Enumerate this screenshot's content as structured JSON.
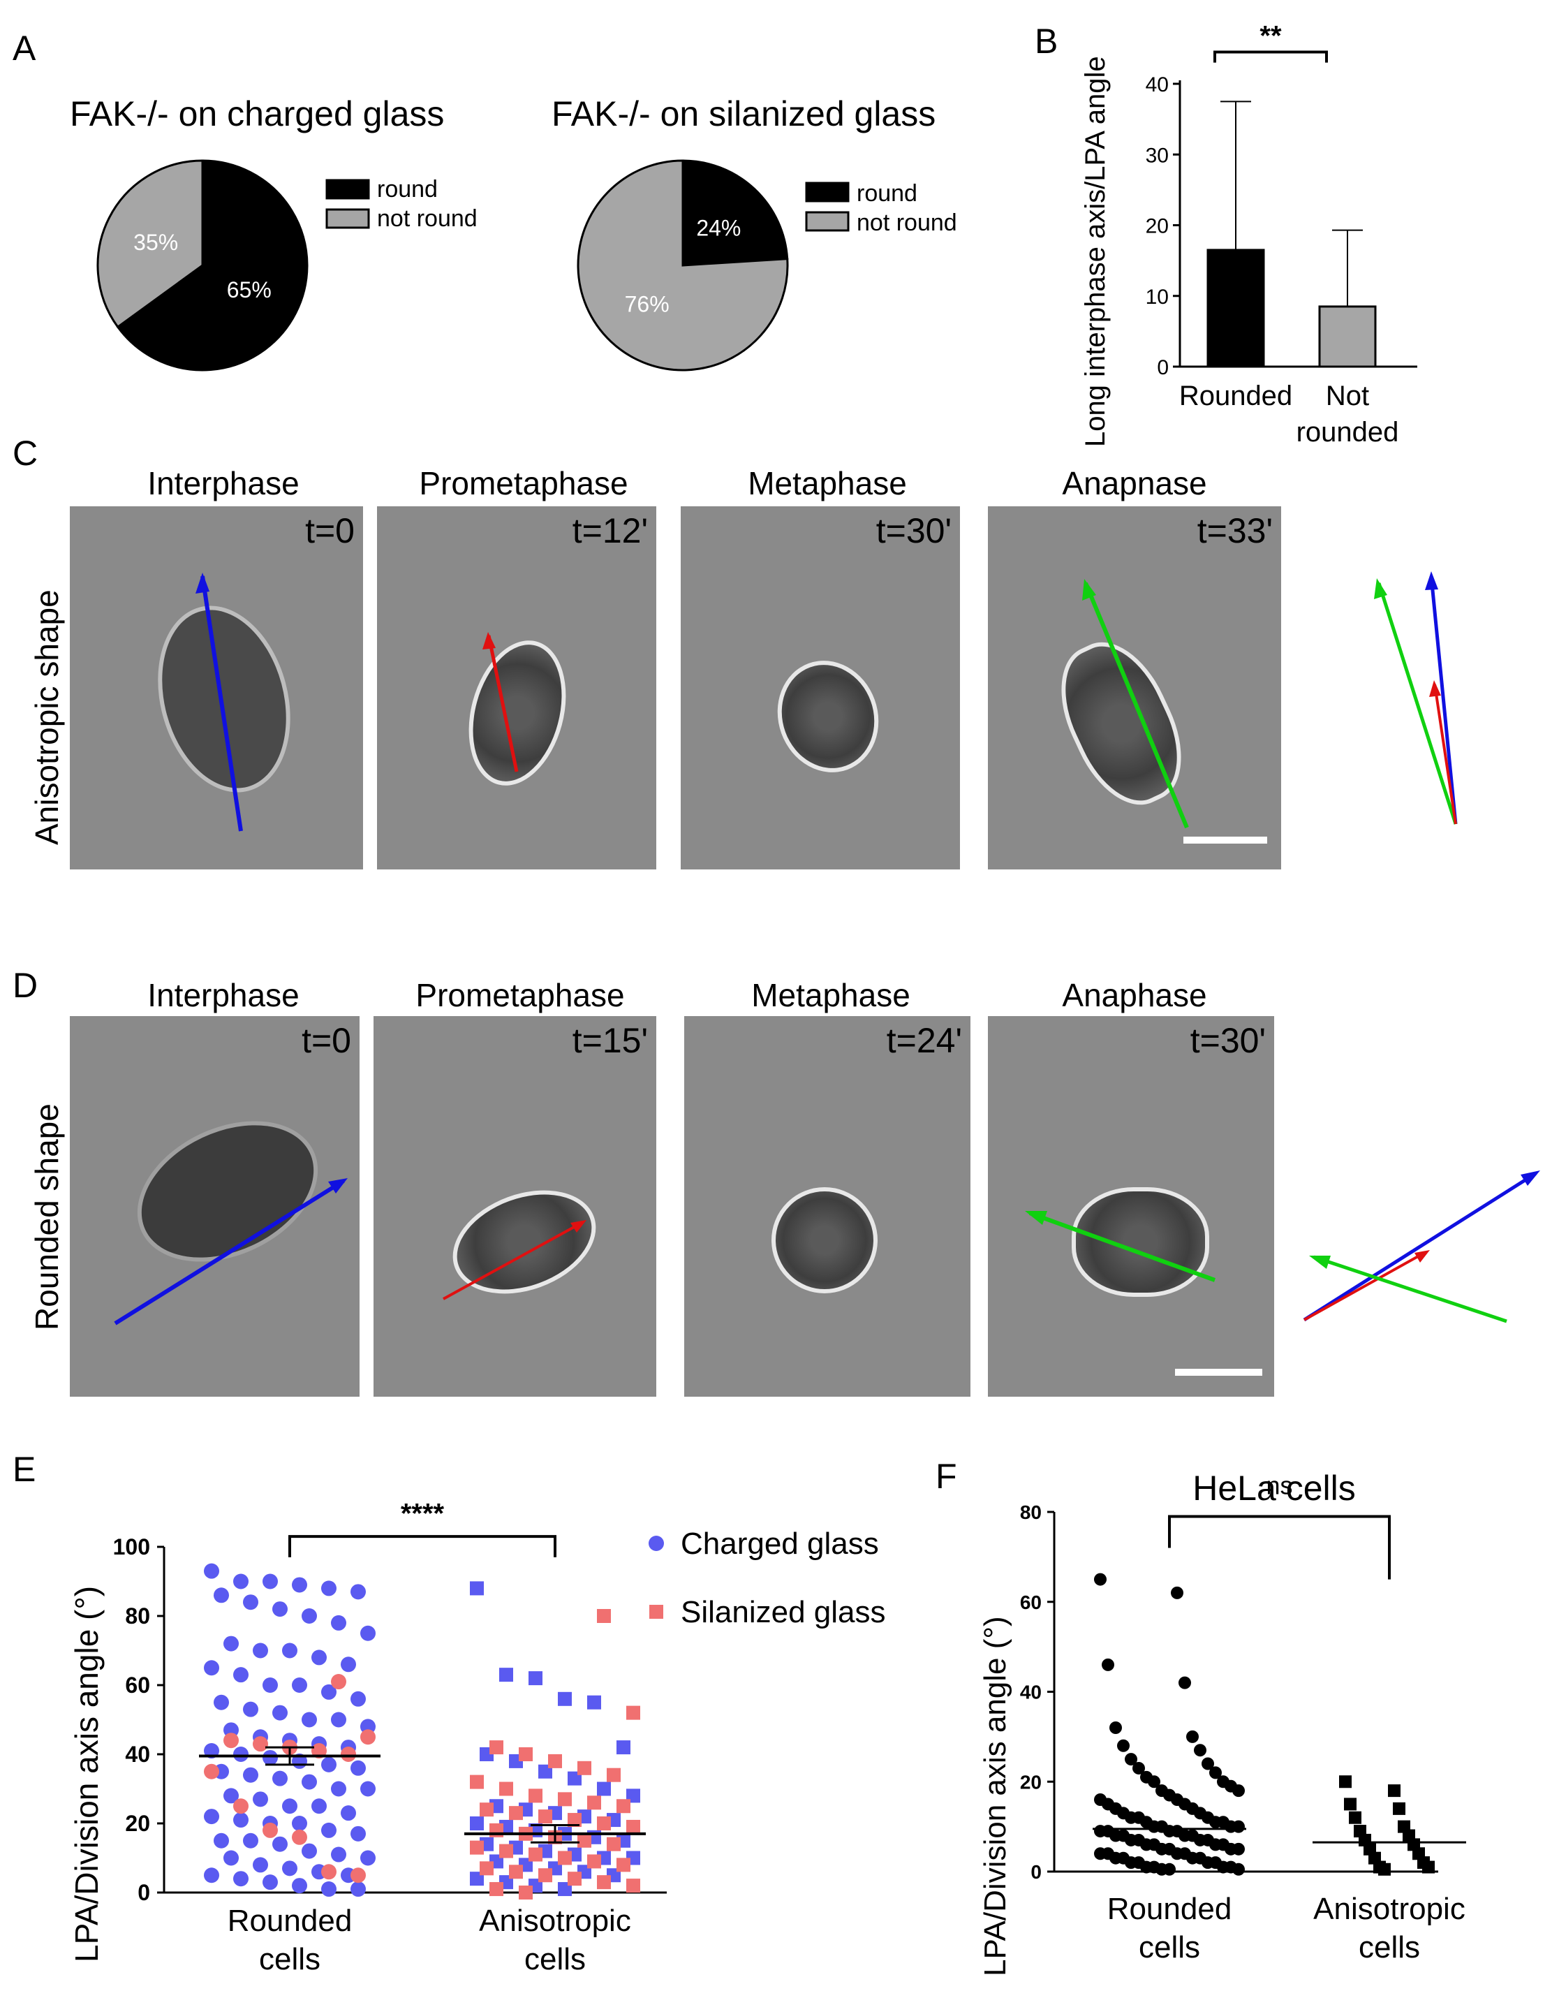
{
  "panels": {
    "A": {
      "label": "A",
      "pie1": {
        "title": "FAK-/- on charged glass",
        "slices": [
          {
            "name": "round",
            "value": 65,
            "label": "65%",
            "color": "#000000"
          },
          {
            "name": "not round",
            "value": 35,
            "label": "35%",
            "color": "#a6a6a6"
          }
        ]
      },
      "pie2": {
        "title": "FAK-/- on silanized glass",
        "slices": [
          {
            "name": "round",
            "value": 24,
            "label": "24%",
            "color": "#000000"
          },
          {
            "name": "not round",
            "value": 76,
            "label": "76%",
            "color": "#a6a6a6"
          }
        ]
      },
      "legend": [
        "round",
        "not round"
      ]
    },
    "B": {
      "label": "B",
      "ylabel": "Long interphase axis/LPA angle",
      "significance": "**",
      "yticks": [
        "0",
        "10",
        "20",
        "30",
        "40"
      ],
      "categories": [
        [
          "Rounded"
        ],
        [
          "Not",
          "rounded"
        ]
      ]
    },
    "C": {
      "label": "C",
      "row_label": "Anisotropic shape",
      "frames": [
        {
          "stage": "Interphase",
          "time": "t=0"
        },
        {
          "stage": "Prometaphase",
          "time": "t=12'"
        },
        {
          "stage": "Metaphase",
          "time": "t=30'"
        },
        {
          "stage": "Anapnase",
          "time": "t=33'"
        }
      ]
    },
    "D": {
      "label": "D",
      "row_label": "Rounded shape",
      "frames": [
        {
          "stage": "Interphase",
          "time": "t=0"
        },
        {
          "stage": "Prometaphase",
          "time": "t=15'"
        },
        {
          "stage": "Metaphase",
          "time": "t=24'"
        },
        {
          "stage": "Anaphase",
          "time": "t=30'"
        }
      ]
    },
    "E": {
      "label": "E",
      "ylabel": "LPA/Division axis angle (°)",
      "significance": "****",
      "yticks": [
        "0",
        "20",
        "40",
        "60",
        "80",
        "100"
      ],
      "categories": [
        [
          "Rounded",
          "cells"
        ],
        [
          "Anisotropic",
          "cells"
        ]
      ],
      "legend": [
        {
          "name": "Charged glass",
          "color": "#5a5af0"
        },
        {
          "name": "Silanized glass",
          "color": "#f07070"
        }
      ]
    },
    "F": {
      "label": "F",
      "title": "HeLa cells",
      "ylabel": "LPA/Division axis angle (°)",
      "significance": "ns",
      "yticks": [
        "0",
        "20",
        "40",
        "60",
        "80"
      ],
      "categories": [
        [
          "Rounded",
          "cells"
        ],
        [
          "Anisotropic",
          "cells"
        ]
      ]
    }
  },
  "chart_data": [
    {
      "type": "pie",
      "title": "FAK-/- on charged glass",
      "categories": [
        "round",
        "not round"
      ],
      "values": [
        65,
        35
      ]
    },
    {
      "type": "pie",
      "title": "FAK-/- on silanized glass",
      "categories": [
        "round",
        "not round"
      ],
      "values": [
        24,
        76
      ]
    },
    {
      "type": "bar",
      "title": "",
      "categories": [
        "Rounded",
        "Not rounded"
      ],
      "values": [
        16.5,
        8.5
      ],
      "error_upper": [
        37.5,
        19.3
      ],
      "xlabel": "",
      "ylabel": "Long interphase axis/LPA angle",
      "ylim": [
        0,
        40
      ],
      "annotations": [
        "**"
      ]
    },
    {
      "type": "scatter",
      "title": "",
      "categories": [
        "Rounded cells",
        "Anisotropic cells"
      ],
      "means": [
        39.5,
        17
      ],
      "ylabel": "LPA/Division axis angle (°)",
      "ylim": [
        0,
        100
      ],
      "annotations": [
        "****"
      ],
      "series": [
        {
          "name": "Charged glass",
          "rounded": [
            93,
            90,
            90,
            89,
            88,
            87,
            86,
            84,
            82,
            80,
            78,
            75,
            72,
            70,
            70,
            68,
            66,
            65,
            63,
            60,
            60,
            58,
            56,
            55,
            53,
            52,
            50,
            50,
            48,
            47,
            45,
            44,
            43,
            42,
            41,
            40,
            39,
            38,
            37,
            36,
            35,
            34,
            33,
            32,
            30,
            30,
            28,
            27,
            25,
            25,
            23,
            22,
            21,
            20,
            20,
            18,
            17,
            15,
            15,
            14,
            12,
            11,
            10,
            10,
            8,
            7,
            6,
            5,
            5,
            4,
            3,
            2,
            1,
            1
          ],
          "anisotropic": [
            88,
            63,
            62,
            56,
            55,
            42,
            40,
            38,
            35,
            33,
            30,
            28,
            25,
            24,
            23,
            22,
            21,
            20,
            19,
            18,
            17,
            16,
            15,
            14,
            13,
            12,
            11,
            10,
            10,
            9,
            8,
            7,
            6,
            5,
            4,
            3,
            2,
            1
          ]
        },
        {
          "name": "Silanized glass",
          "rounded": [
            61,
            45,
            44,
            43,
            42,
            41,
            40,
            35,
            25,
            18,
            16,
            6,
            5
          ],
          "anisotropic": [
            80,
            52,
            42,
            40,
            38,
            36,
            34,
            32,
            30,
            28,
            27,
            26,
            25,
            24,
            23,
            22,
            21,
            20,
            19,
            18,
            17,
            16,
            15,
            14,
            13,
            12,
            11,
            10,
            9,
            8,
            7,
            6,
            5,
            4,
            3,
            2,
            1,
            0
          ]
        }
      ]
    },
    {
      "type": "scatter",
      "title": "HeLa cells",
      "categories": [
        "Rounded cells",
        "Anisotropic cells"
      ],
      "means": [
        9.5,
        6.5
      ],
      "ylabel": "LPA/Division axis angle (°)",
      "ylim": [
        0,
        80
      ],
      "annotations": [
        "ns"
      ],
      "series": [
        {
          "name": "",
          "rounded": [
            65,
            62,
            46,
            42,
            32,
            30,
            28,
            27,
            25,
            24,
            23,
            22,
            21,
            20,
            20,
            19,
            18,
            18,
            17,
            16,
            16,
            15,
            15,
            14,
            14,
            13,
            13,
            12,
            12,
            12,
            11,
            11,
            11,
            10,
            10,
            10,
            10,
            9,
            9,
            9,
            9,
            8,
            8,
            8,
            8,
            7,
            7,
            7,
            7,
            6,
            6,
            6,
            6,
            5,
            5,
            5,
            5,
            4,
            4,
            4,
            4,
            3,
            3,
            3,
            3,
            2,
            2,
            2,
            2,
            1,
            1,
            1,
            1,
            0.5,
            0.5,
            0.5
          ],
          "anisotropic": [
            20,
            18,
            15,
            14,
            12,
            10,
            9,
            8,
            7,
            6,
            5,
            4,
            3,
            2,
            1,
            1,
            0.5
          ]
        }
      ]
    }
  ]
}
